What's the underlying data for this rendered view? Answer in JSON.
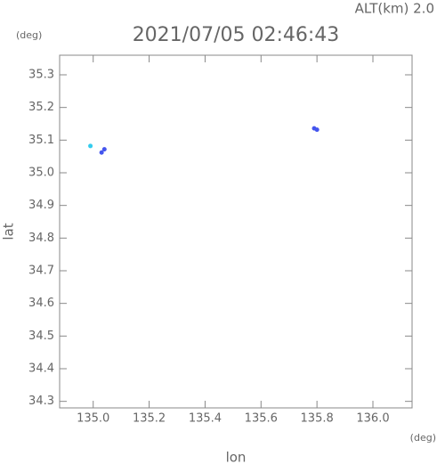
{
  "chart_data": {
    "type": "scatter",
    "title": "2021/07/05 02:46:43",
    "subtitle": "ALT(km) 2.0",
    "x_label": "lon",
    "y_label": "lat",
    "x_unit": "(deg)",
    "y_unit": "(deg)",
    "xlim": [
      134.88,
      136.14
    ],
    "ylim": [
      34.28,
      35.36
    ],
    "xticks": [
      {
        "value": 135.0,
        "label": "135.0"
      },
      135.2,
      135.4,
      135.6,
      135.8,
      {
        "value": 136.0,
        "label": "136.0"
      }
    ],
    "yticks": [
      34.3,
      34.4,
      34.5,
      34.6,
      34.7,
      34.8,
      34.9,
      {
        "value": 35.0,
        "label": "35.0"
      },
      35.1,
      35.2,
      35.3
    ],
    "series": [
      {
        "color": "#33ccee",
        "x": [
          134.99
        ],
        "values": [
          35.082
        ]
      },
      {
        "color": "#4455ee",
        "x": [
          135.03,
          135.04,
          135.79,
          135.8
        ],
        "values": [
          35.062,
          35.072,
          35.136,
          35.132
        ]
      }
    ]
  }
}
